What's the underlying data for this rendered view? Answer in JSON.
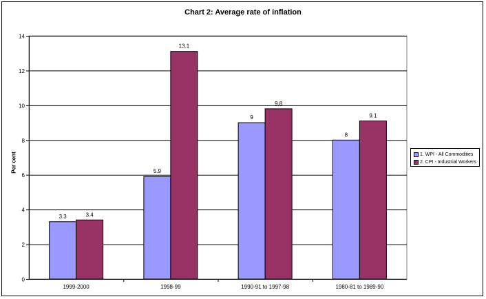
{
  "chart_data": {
    "type": "bar",
    "title": "Chart 2: Average rate of inflation",
    "xlabel": "",
    "ylabel": "Per cent",
    "ylim": [
      0,
      14
    ],
    "yticks": [
      0,
      2,
      4,
      6,
      8,
      10,
      12,
      14
    ],
    "categories": [
      "1999-2000",
      "1998-99",
      "1990-91 to 1997-98",
      "1980-81 to 1989-90"
    ],
    "series": [
      {
        "name": "1. WPI - All Commodities",
        "values": [
          3.3,
          5.9,
          9,
          8
        ],
        "color": "#9999ff"
      },
      {
        "name": "2. CPI - Industrial Workers",
        "values": [
          3.4,
          13.1,
          9.8,
          9.1
        ],
        "color": "#993366"
      }
    ],
    "grid": true,
    "legend": "right"
  }
}
